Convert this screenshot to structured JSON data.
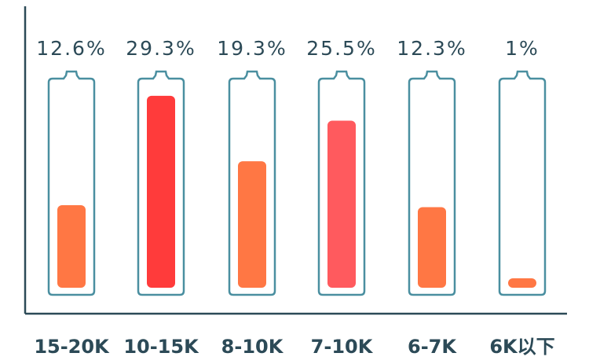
{
  "chart_data": {
    "type": "bar",
    "categories": [
      "15-20K",
      "10-15K",
      "8-10K",
      "7-10K",
      "6-7K",
      "6K以下"
    ],
    "values": [
      12.6,
      29.3,
      19.3,
      25.5,
      12.3,
      1
    ],
    "value_labels": [
      "12.6%",
      "29.3%",
      "19.3%",
      "25.5%",
      "12.3%",
      "1%"
    ],
    "ylim": [
      0,
      30
    ],
    "grid": false,
    "colors": [
      "#ff7744",
      "#ff3b3b",
      "#ff7744",
      "#ff5a5e",
      "#ff7744",
      "#ff7744"
    ],
    "outline_color": "#4a8fa0",
    "axis_color": "#2c4a57"
  }
}
